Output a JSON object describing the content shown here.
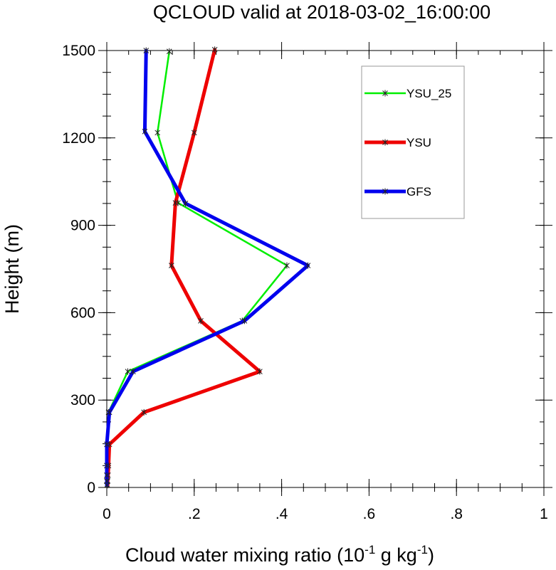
{
  "chart_data": {
    "type": "line",
    "title": "QCLOUD valid at 2018-03-02_16:00:00",
    "xlabel": "Cloud water mixing ratio (10",
    "xlabel_exp1": "-1",
    "xlabel_mid": " g kg",
    "xlabel_exp2": "-1",
    "xlabel_end": ")",
    "ylabel": "Height (m)",
    "xlim": [
      0,
      1
    ],
    "ylim": [
      0,
      1500
    ],
    "x_ticks": [
      0,
      0.2,
      0.4,
      0.6,
      0.8,
      1
    ],
    "x_tick_labels": [
      "0",
      ".2",
      ".4",
      ".6",
      ".8",
      "1"
    ],
    "y_ticks": [
      0,
      300,
      600,
      900,
      1200,
      1500
    ],
    "y_tick_labels": [
      "0",
      "300",
      "600",
      "900",
      "1200",
      "1500"
    ],
    "grid": false,
    "legend_position": "top-right",
    "series": [
      {
        "name": "YSU_25",
        "color": "#00ee00",
        "points": [
          [
            0,
            8
          ],
          [
            0,
            22
          ],
          [
            0,
            42
          ],
          [
            0,
            75
          ],
          [
            0.001,
            148
          ],
          [
            0.004,
            258
          ],
          [
            0.048,
            398
          ],
          [
            0.31,
            572
          ],
          [
            0.412,
            762
          ],
          [
            0.163,
            977
          ],
          [
            0.116,
            1218
          ],
          [
            0.143,
            1497
          ]
        ]
      },
      {
        "name": "YSU",
        "color": "#ee0000",
        "points": [
          [
            0.002,
            8
          ],
          [
            0.002,
            22
          ],
          [
            0.003,
            42
          ],
          [
            0.004,
            75
          ],
          [
            0.006,
            148
          ],
          [
            0.085,
            258
          ],
          [
            0.35,
            398
          ],
          [
            0.215,
            572
          ],
          [
            0.148,
            762
          ],
          [
            0.157,
            977
          ],
          [
            0.2,
            1218
          ],
          [
            0.247,
            1503
          ]
        ]
      },
      {
        "name": "GFS",
        "color": "#0000ee",
        "points": [
          [
            0,
            8
          ],
          [
            0,
            22
          ],
          [
            0,
            42
          ],
          [
            0,
            75
          ],
          [
            0,
            148
          ],
          [
            0.006,
            258
          ],
          [
            0.06,
            398
          ],
          [
            0.315,
            572
          ],
          [
            0.46,
            762
          ],
          [
            0.18,
            975
          ],
          [
            0.087,
            1222
          ],
          [
            0.09,
            1500
          ]
        ]
      }
    ]
  }
}
